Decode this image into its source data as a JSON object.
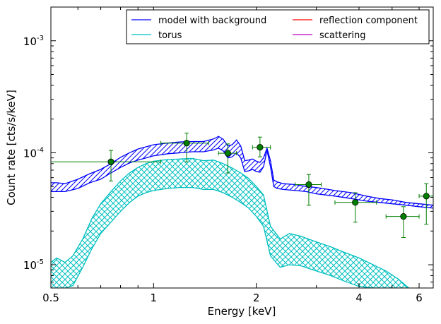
{
  "chart_data": {
    "type": "line",
    "xlabel": "Energy [keV]",
    "ylabel": "Count rate [cts/s/keV]",
    "x_scale": "log",
    "y_scale": "log",
    "xlim": [
      0.5,
      6.6
    ],
    "ylim": [
      6.2e-06,
      0.002
    ],
    "x_ticks": [
      {
        "value": 0.5,
        "label": "0.5"
      },
      {
        "value": 1,
        "label": "1"
      },
      {
        "value": 2,
        "label": "2"
      },
      {
        "value": 4,
        "label": "4"
      },
      {
        "value": 6,
        "label": "6"
      }
    ],
    "y_ticks": [
      {
        "value": 1e-05,
        "base": "10",
        "exp": "-5"
      },
      {
        "value": 0.0001,
        "base": "10",
        "exp": "-4"
      },
      {
        "value": 0.001,
        "base": "10",
        "exp": "-3"
      }
    ],
    "grid": false,
    "legend": {
      "position": "top-right",
      "entries": [
        {
          "label": "model with background",
          "color": "#0000ff"
        },
        {
          "label": "reflection component",
          "color": "#ff0000"
        },
        {
          "label": "torus",
          "color": "#00bfbf"
        },
        {
          "label": "scattering",
          "color": "#bf00bf"
        }
      ]
    },
    "series": [
      {
        "name": "model with background",
        "color": "#0000ff",
        "x": [
          0.5,
          0.52,
          0.55,
          0.6,
          0.65,
          0.7,
          0.75,
          0.8,
          0.85,
          0.9,
          0.95,
          1.0,
          1.1,
          1.2,
          1.3,
          1.4,
          1.5,
          1.55,
          1.6,
          1.65,
          1.7,
          1.75,
          1.8,
          1.85,
          1.9,
          1.95,
          2.0,
          2.05,
          2.1,
          2.15,
          2.2,
          2.25,
          2.3,
          2.4,
          2.6,
          2.8,
          3.0,
          3.4,
          3.8,
          4.2,
          4.6,
          5.0,
          5.5,
          6.0,
          6.6
        ],
        "upper": [
          5.4e-05,
          5.4e-05,
          5.3e-05,
          5.8e-05,
          6.5e-05,
          7.1e-05,
          8e-05,
          9.1e-05,
          0.0001,
          0.000108,
          0.000113,
          0.000118,
          0.000122,
          0.000125,
          0.000126,
          0.000126,
          0.000133,
          0.00014,
          0.000132,
          0.000115,
          0.000118,
          0.00013,
          0.000115,
          8.5e-05,
          8.6e-05,
          8.8e-05,
          8.4e-05,
          8.2e-05,
          9e-05,
          0.00011,
          8.5e-05,
          5.7e-05,
          5.5e-05,
          5.3e-05,
          5.2e-05,
          5e-05,
          4.9e-05,
          4.6e-05,
          4.4e-05,
          4.1e-05,
          3.9e-05,
          3.8e-05,
          3.6e-05,
          3.5e-05,
          3.4e-05
        ],
        "lower": [
          4.5e-05,
          4.5e-05,
          4.5e-05,
          4.8e-05,
          5.4e-05,
          5.8e-05,
          6.6e-05,
          7.4e-05,
          8.1e-05,
          8.6e-05,
          9e-05,
          9.4e-05,
          9.8e-05,
          0.0001,
          0.000102,
          0.000102,
          0.000106,
          0.00011,
          0.000104,
          9e-05,
          9.2e-05,
          0.0001,
          9e-05,
          6.8e-05,
          6.9e-05,
          7.1e-05,
          6.8e-05,
          6.7e-05,
          7.5e-05,
          0.000105,
          7.5e-05,
          5e-05,
          4.8e-05,
          4.7e-05,
          4.6e-05,
          4.5e-05,
          4.3e-05,
          4.1e-05,
          3.9e-05,
          3.7e-05,
          3.6e-05,
          3.5e-05,
          3.4e-05,
          3.3e-05,
          3.2e-05
        ]
      },
      {
        "name": "torus",
        "color": "#00bfbf",
        "x": [
          0.5,
          0.52,
          0.55,
          0.58,
          0.62,
          0.66,
          0.7,
          0.75,
          0.8,
          0.85,
          0.9,
          0.95,
          1.0,
          1.1,
          1.2,
          1.3,
          1.4,
          1.5,
          1.6,
          1.7,
          1.8,
          1.9,
          2.0,
          2.1,
          2.2,
          2.35,
          2.5,
          2.7,
          3.0,
          3.3,
          3.6,
          4.0,
          4.4,
          4.8,
          5.2,
          5.6
        ],
        "upper": [
          1.05e-05,
          1.15e-05,
          1.05e-05,
          1.2e-05,
          1.7e-05,
          2.6e-05,
          3.5e-05,
          4.5e-05,
          5.6e-05,
          6.6e-05,
          7.4e-05,
          8e-05,
          8.4e-05,
          8.7e-05,
          8.8e-05,
          8.9e-05,
          8.5e-05,
          8.6e-05,
          8e-05,
          7.3e-05,
          6.6e-05,
          5.9e-05,
          5e-05,
          4.2e-05,
          2.2e-05,
          1.7e-05,
          1.9e-05,
          1.8e-05,
          1.6e-05,
          1.45e-05,
          1.3e-05,
          1.15e-05,
          1e-05,
          8.8e-06,
          7.5e-06,
          6.2e-06
        ],
        "lower": [
          6.2e-06,
          6.2e-06,
          6.2e-06,
          6.5e-06,
          9.5e-06,
          1.4e-05,
          1.9e-05,
          2.4e-05,
          3e-05,
          3.6e-05,
          4.1e-05,
          4.4e-05,
          4.6e-05,
          4.8e-05,
          4.9e-05,
          4.9e-05,
          4.7e-05,
          4.7e-05,
          4.4e-05,
          4e-05,
          3.6e-05,
          3.2e-05,
          2.7e-05,
          2.2e-05,
          1.2e-05,
          9.5e-06,
          1e-05,
          9.8e-06,
          8.8e-06,
          8e-06,
          7.2e-06,
          6.4e-06,
          6.2e-06,
          6.2e-06,
          6.2e-06,
          6.2e-06
        ]
      }
    ],
    "data_points": {
      "color": "#007f00",
      "points": [
        {
          "x": 0.75,
          "y": 8.3e-05,
          "xerr": [
            0.5,
            1.05
          ],
          "yerr": [
            5.6e-05,
            0.000105
          ]
        },
        {
          "x": 1.25,
          "y": 0.000122,
          "xerr": [
            1.05,
            1.45
          ],
          "yerr": [
            8.3e-05,
            0.00015
          ]
        },
        {
          "x": 1.65,
          "y": 9.9e-05,
          "xerr": [
            1.55,
            1.75
          ],
          "yerr": [
            6.6e-05,
            0.00012
          ]
        },
        {
          "x": 2.05,
          "y": 0.000112,
          "xerr": [
            1.95,
            2.2
          ],
          "yerr": [
            9.2e-05,
            0.000138
          ]
        },
        {
          "x": 2.85,
          "y": 5.2e-05,
          "xerr": [
            2.6,
            3.1
          ],
          "yerr": [
            3.4e-05,
            6.4e-05
          ]
        },
        {
          "x": 3.9,
          "y": 3.6e-05,
          "xerr": [
            3.4,
            4.5
          ],
          "yerr": [
            2.4e-05,
            4.4e-05
          ]
        },
        {
          "x": 5.4,
          "y": 2.7e-05,
          "xerr": [
            4.8,
            6.0
          ],
          "yerr": [
            1.75e-05,
            3.3e-05
          ]
        },
        {
          "x": 6.3,
          "y": 4.1e-05,
          "xerr": [
            6.0,
            6.6
          ],
          "yerr": [
            2.3e-05,
            5.3e-05
          ]
        }
      ]
    }
  }
}
